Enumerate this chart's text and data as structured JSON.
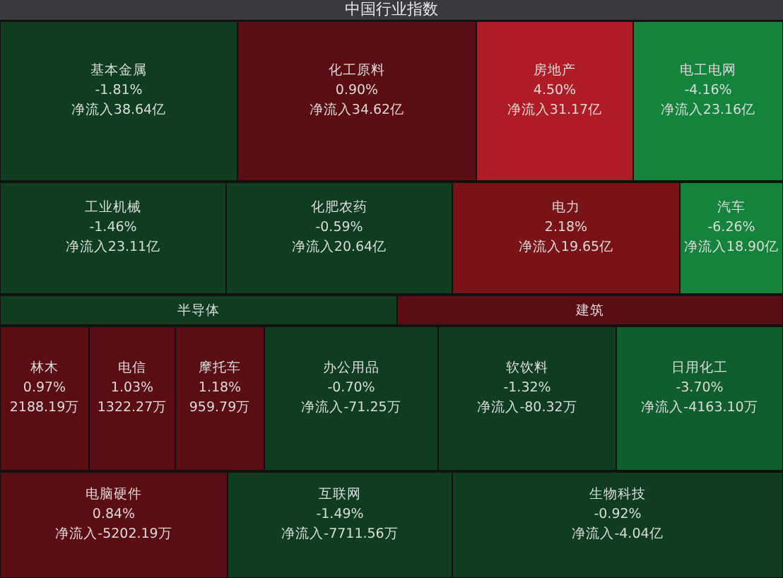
{
  "chart_data": {
    "type": "other",
    "title": "中国行业指数",
    "categories": [
      "基本金属",
      "化工原料",
      "房地产",
      "电工电网",
      "工业机械",
      "化肥农药",
      "电力",
      "汽车",
      "半导体",
      "建筑",
      "林木",
      "电信",
      "摩托车",
      "办公用品",
      "软饮料",
      "日用化工",
      "电脑硬件",
      "互联网",
      "生物科技"
    ],
    "values": [
      -1.81,
      0.9,
      4.5,
      -4.16,
      -1.46,
      -0.59,
      2.18,
      -6.26,
      null,
      null,
      0.97,
      1.03,
      1.18,
      -0.7,
      -1.32,
      -3.7,
      0.84,
      -1.49,
      -0.92
    ],
    "value_labels": [
      "-1.81%",
      "0.90%",
      "4.50%",
      "-4.16%",
      "-1.46%",
      "-0.59%",
      "2.18%",
      "-6.26%",
      null,
      null,
      "0.97%",
      "1.03%",
      "1.18%",
      "-0.70%",
      "-1.32%",
      "-3.70%",
      "0.84%",
      "-1.49%",
      "-0.92%"
    ],
    "colors": [
      "#0f3d20",
      "#5a0e13",
      "#b01c25",
      "#14843c",
      "#0f3d20",
      "#0f3d20",
      "#7a1317",
      "#14843c",
      "#0f3d20",
      "#5a0e13",
      "#5a0e13",
      "#5a0e13",
      "#5a0e13",
      "#0f3d20",
      "#0f3d20",
      "#0f5e2c",
      "#5a0e13",
      "#0f3d20",
      "#0f3d20"
    ],
    "annotations": [
      "净流入38.64亿",
      "净流入34.62亿",
      "净流入31.17亿",
      "净流入23.16亿",
      "净流入23.11亿",
      "净流入20.64亿",
      "净流入19.65亿",
      "净流入18.90亿",
      "2188.19万",
      "1322.27万",
      "959.79万",
      "净流入-71.25万",
      "净流入-80.32万",
      "净流入-4163.10万",
      "净流入-5202.19万",
      "净流入-7711.56万",
      "净流入-4.04亿"
    ]
  }
}
